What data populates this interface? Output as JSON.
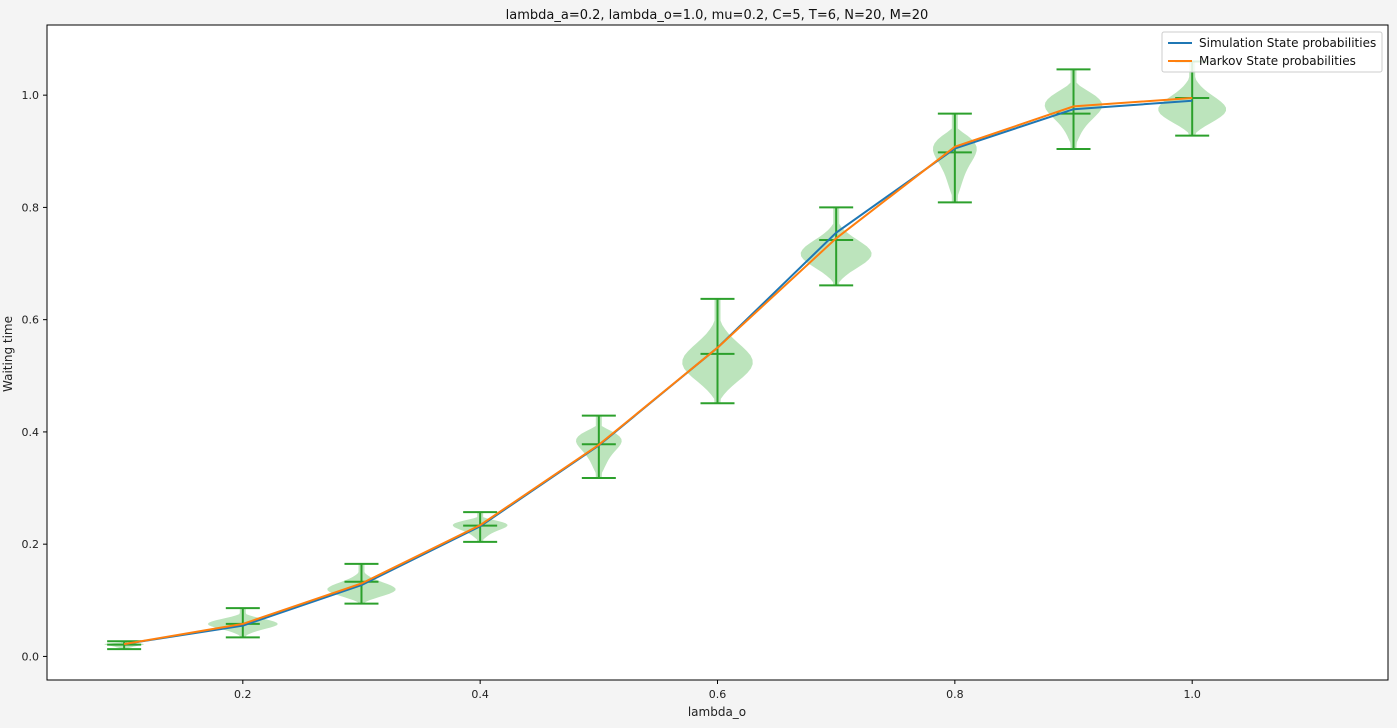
{
  "chart_data": {
    "type": "line",
    "title": "lambda_a=0.2, lambda_o=1.0, mu=0.2, C=5, T=6, N=20, M=20",
    "xlabel": "lambda_o",
    "ylabel": "Waiting time",
    "xlim": [
      0.035,
      1.165
    ],
    "ylim": [
      -0.042,
      1.125
    ],
    "xticks": [
      "0.2",
      "0.4",
      "0.6",
      "0.8",
      "1.0"
    ],
    "yticks": [
      "0.0",
      "0.2",
      "0.4",
      "0.6",
      "0.8",
      "1.0"
    ],
    "grid": false,
    "legend_position": "top-right",
    "x": [
      0.1,
      0.2,
      0.3,
      0.4,
      0.5,
      0.6,
      0.7,
      0.8,
      0.9,
      1.0
    ],
    "series": [
      {
        "name": "Simulation State probabilities",
        "color": "#1f77b4",
        "values": [
          0.022,
          0.055,
          0.127,
          0.232,
          0.376,
          0.55,
          0.755,
          0.905,
          0.975,
          0.99
        ]
      },
      {
        "name": "Markov State probabilities",
        "color": "#ff7f0e",
        "values": [
          0.022,
          0.058,
          0.13,
          0.234,
          0.377,
          0.55,
          0.745,
          0.908,
          0.98,
          0.995
        ]
      }
    ],
    "violins": {
      "color": "#2ca02c",
      "fill": "#a6dba6",
      "items": [
        {
          "x": 0.1,
          "min": 0.013,
          "max": 0.027,
          "median": 0.021,
          "width": 0.06
        },
        {
          "x": 0.2,
          "min": 0.034,
          "max": 0.086,
          "median": 0.058,
          "width": 0.06
        },
        {
          "x": 0.3,
          "min": 0.094,
          "max": 0.165,
          "median": 0.133,
          "width": 0.06
        },
        {
          "x": 0.4,
          "min": 0.204,
          "max": 0.257,
          "median": 0.233,
          "width": 0.06
        },
        {
          "x": 0.5,
          "min": 0.318,
          "max": 0.429,
          "median": 0.378,
          "width": 0.06
        },
        {
          "x": 0.6,
          "min": 0.451,
          "max": 0.637,
          "median": 0.539,
          "width": 0.06
        },
        {
          "x": 0.7,
          "min": 0.661,
          "max": 0.8,
          "median": 0.742,
          "width": 0.06
        },
        {
          "x": 0.8,
          "min": 0.809,
          "max": 0.967,
          "median": 0.898,
          "width": 0.06
        },
        {
          "x": 0.9,
          "min": 0.904,
          "max": 1.046,
          "median": 0.967,
          "width": 0.06
        },
        {
          "x": 1.0,
          "min": 0.928,
          "max": 1.06,
          "median": 0.995,
          "width": 0.06
        }
      ]
    }
  }
}
